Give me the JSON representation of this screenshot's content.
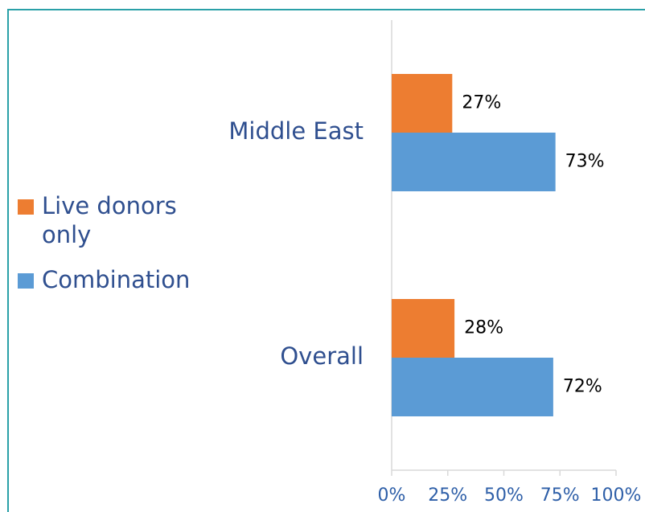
{
  "chart_data": {
    "type": "hbar",
    "categories": [
      "Middle East",
      "Overall"
    ],
    "series": [
      {
        "name": "Live donors only",
        "color": "#ed7d31",
        "values": [
          27,
          28
        ],
        "value_labels": [
          "27%",
          "28%"
        ]
      },
      {
        "name": "Combination",
        "color": "#5b9bd5",
        "values": [
          73,
          72
        ],
        "value_labels": [
          "73%",
          "72%"
        ]
      }
    ],
    "xlim": [
      0,
      100
    ],
    "xticks": [
      {
        "value": 0,
        "label": "0%"
      },
      {
        "value": 25,
        "label": "25%"
      },
      {
        "value": 50,
        "label": "50%"
      },
      {
        "value": 75,
        "label": "75%"
      },
      {
        "value": 100,
        "label": "100%"
      }
    ],
    "legend": "left"
  }
}
